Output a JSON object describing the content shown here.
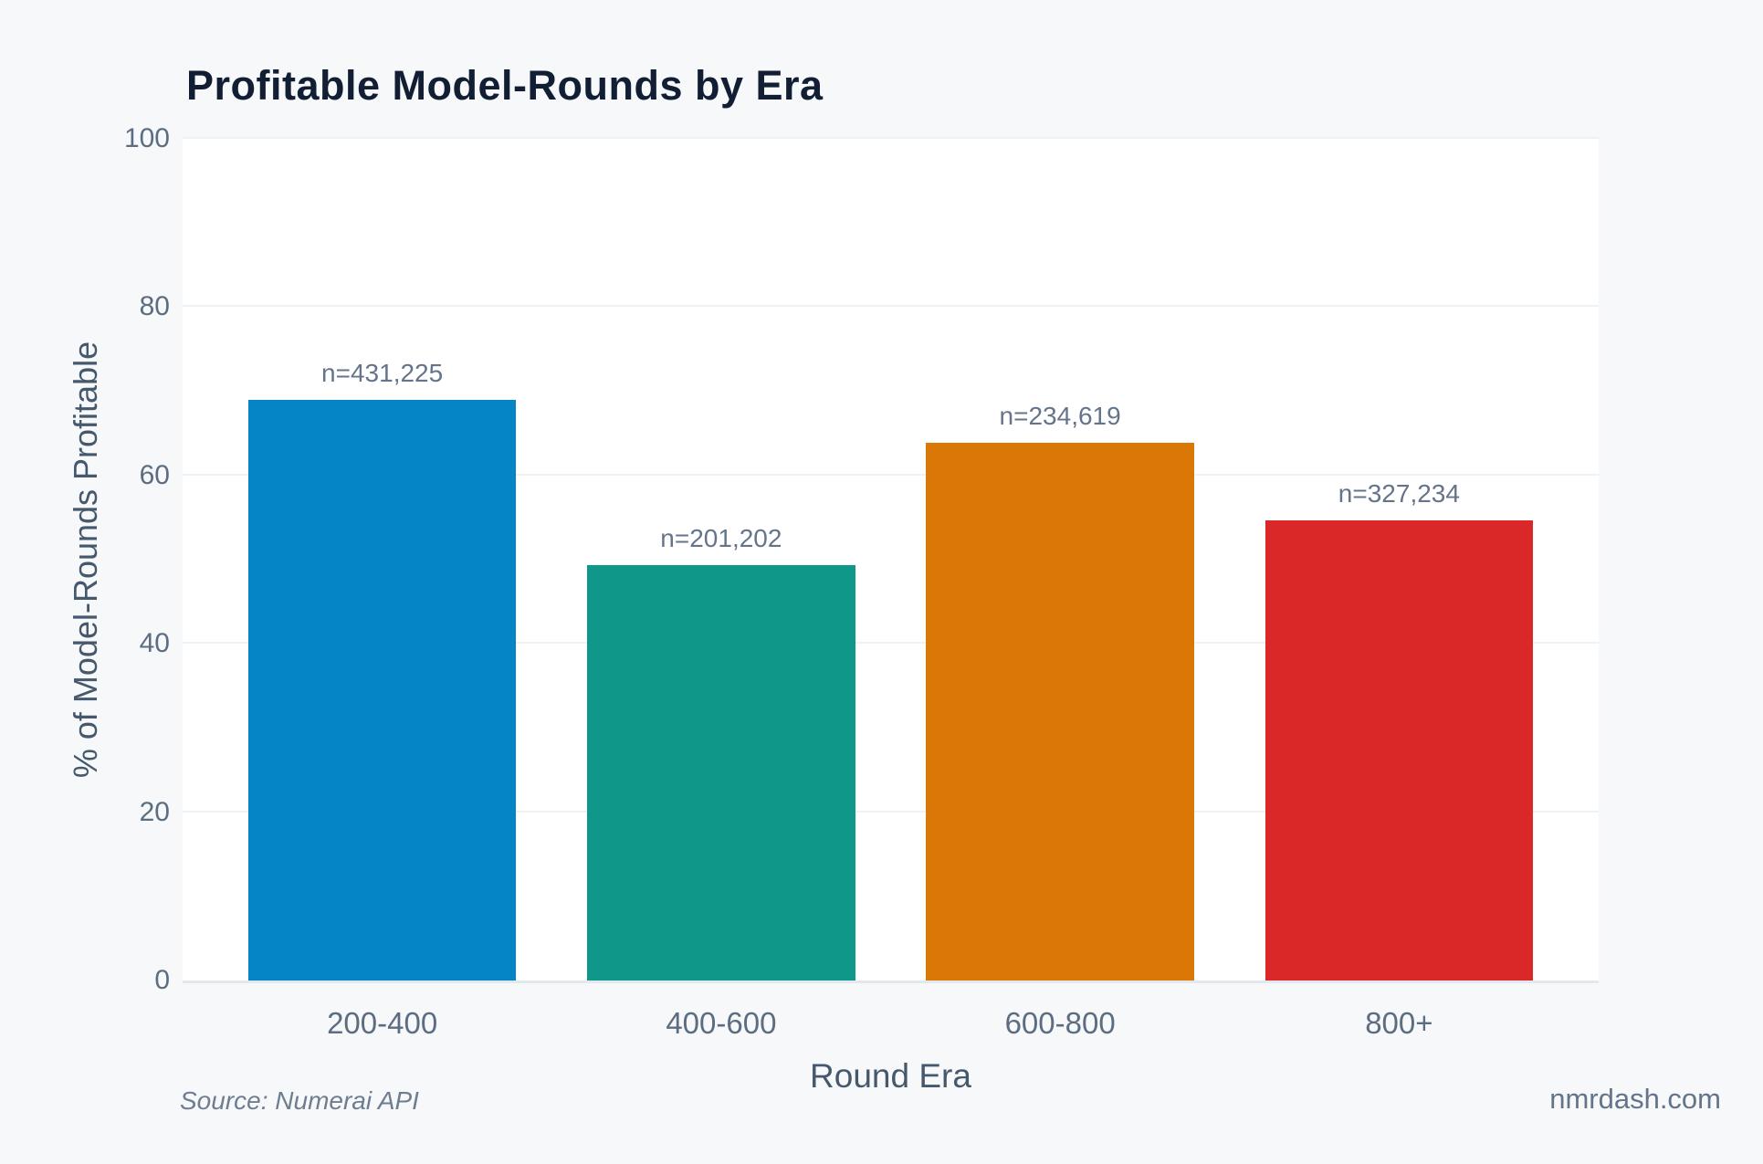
{
  "page": {
    "background": "#f6f8fa",
    "source_note": "Source: Numerai API",
    "watermark": "nmrdash.com"
  },
  "chart_data": {
    "type": "bar",
    "title": "Profitable Model-Rounds by Era",
    "xlabel": "Round Era",
    "ylabel": "% of Model-Rounds Profitable",
    "categories": [
      "200-400",
      "400-600",
      "600-800",
      "800+"
    ],
    "values": [
      69.0,
      49.4,
      63.9,
      54.7
    ],
    "bar_labels": [
      "n=431,225",
      "n=201,202",
      "n=234,619",
      "n=327,234"
    ],
    "bar_colors": [
      "#0685c6",
      "#0f9889",
      "#d97807",
      "#da2727"
    ],
    "ylim": [
      0,
      100
    ],
    "yticks": [
      0,
      20,
      40,
      60,
      80,
      100
    ],
    "grid": "horizontal gridlines, light gray",
    "legend": "none",
    "plot_background": "#ffffff",
    "gridline_color": "#eef1f5"
  }
}
